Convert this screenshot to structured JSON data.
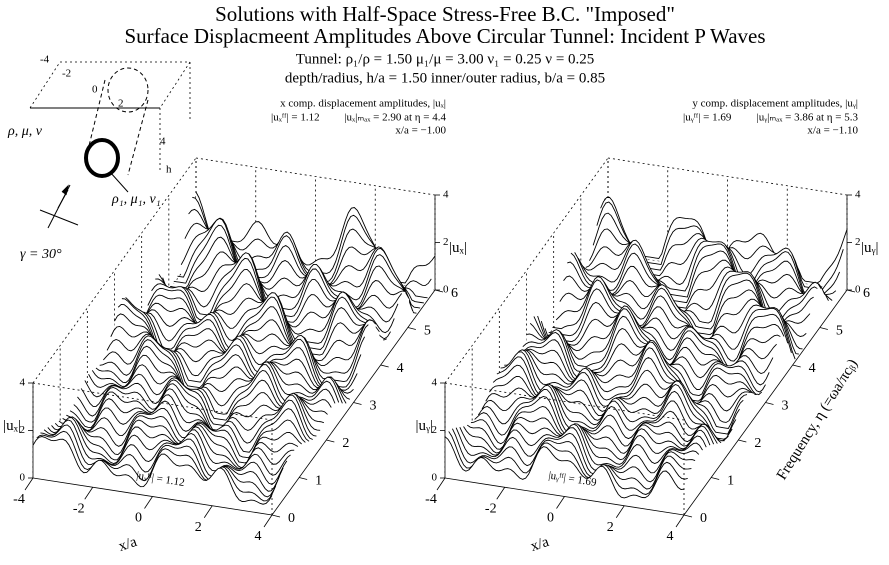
{
  "title": [
    "Solutions with Half-Space Stress-Free B.C. \"Imposed\"",
    "Surface Displacmeent Amplitudes Above Circular Tunnel: Incident P Waves"
  ],
  "params": [
    "Tunnel:   ρ₁/ρ = 1.50   μ₁/μ = 3.00   ν₁ = 0.25   ν = 0.25",
    "depth/radius, h/a = 1.50    inner/outer radius, b/a = 0.85"
  ],
  "inset": {
    "medium": "ρ, μ, ν",
    "tunnel": "ρ₁, μ₁, ν₁",
    "depth": "h",
    "angle": "γ = 30°",
    "ticks": [
      -4,
      -2,
      0,
      2,
      4
    ]
  },
  "x_label": "x/a",
  "freq_label": "Frequency, η (=ωa/πcᵦ)",
  "panels": [
    {
      "heading": "x comp. displacement amplitudes, |uₓ|",
      "ff": "|uₓᶠᶠ| = 1.12",
      "max": "|uₓ|ₘₐₓ = 2.90  at η = 4.4",
      "at": "x/a = −1.00",
      "z_label": "|uₓ|",
      "base_label": "|uₓᶠᶠ| = 1.12",
      "xticks": [
        -4,
        -2,
        0,
        2,
        4
      ],
      "freq_ticks": [
        0,
        1,
        2,
        3,
        4,
        5,
        6
      ],
      "zticks": [
        0,
        2,
        4
      ]
    },
    {
      "heading": "y comp. displacement amplitudes, |uᵧ|",
      "ff": "|uᵧᶠᶠ| = 1.69",
      "max": "|uᵧ|ₘₐₓ = 3.86  at η = 5.3",
      "at": "x/a = −1.10",
      "z_label": "|uᵧ|",
      "base_label": "|uᵧᶠᶠ| = 1.69",
      "xticks": [
        -4,
        -2,
        0,
        2,
        4
      ],
      "freq_ticks": [
        0,
        1,
        2,
        3,
        4,
        5,
        6
      ],
      "zticks": [
        0,
        2,
        4
      ]
    }
  ]
}
